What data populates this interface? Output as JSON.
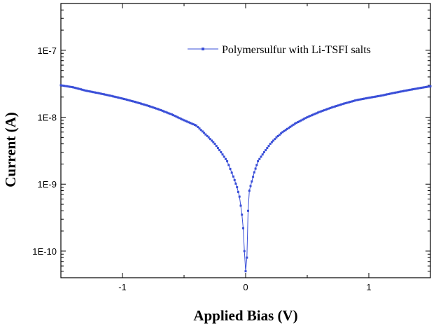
{
  "chart_data": {
    "type": "scatter",
    "title": "",
    "xlabel": "Applied Bias (V)",
    "ylabel": "Current (A)",
    "xlim": [
      -1.5,
      1.5
    ],
    "ylim": [
      4e-11,
      5e-07
    ],
    "yscale": "log",
    "grid": false,
    "legend_position": "top-right",
    "x_ticks": [
      {
        "value": -1,
        "label": "-1"
      },
      {
        "value": 0,
        "label": "0"
      },
      {
        "value": 1,
        "label": "1"
      }
    ],
    "y_ticks": [
      {
        "value": 1e-10,
        "label": "1E-10"
      },
      {
        "value": 1e-09,
        "label": "1E-9"
      },
      {
        "value": 1e-08,
        "label": "1E-8"
      },
      {
        "value": 1e-07,
        "label": "1E-7"
      }
    ],
    "series": [
      {
        "name": "Polymersulfur with Li-TSFI salts",
        "color": "#3a4fd8",
        "marker": "square",
        "x": [
          -1.5,
          -1.4,
          -1.3,
          -1.2,
          -1.1,
          -1.0,
          -0.9,
          -0.8,
          -0.7,
          -0.6,
          -0.5,
          -0.4,
          -0.3,
          -0.25,
          -0.2,
          -0.15,
          -0.1,
          -0.07,
          -0.05,
          -0.03,
          -0.02,
          -0.01,
          0.0,
          0.01,
          0.02,
          0.03,
          0.05,
          0.07,
          0.1,
          0.15,
          0.2,
          0.25,
          0.3,
          0.4,
          0.5,
          0.6,
          0.7,
          0.8,
          0.9,
          1.0,
          1.1,
          1.2,
          1.3,
          1.4,
          1.5
        ],
        "y": [
          3e-08,
          2.8e-08,
          2.5e-08,
          2.3e-08,
          2.1e-08,
          1.9e-08,
          1.7e-08,
          1.5e-08,
          1.3e-08,
          1.1e-08,
          9e-09,
          7.5e-09,
          5e-09,
          4e-09,
          3e-09,
          2.2e-09,
          1.3e-09,
          9e-10,
          6.5e-10,
          3.5e-10,
          2.2e-10,
          1e-10,
          5e-11,
          8e-11,
          4e-10,
          8e-10,
          1.1e-09,
          1.5e-09,
          2.2e-09,
          3e-09,
          4e-09,
          5e-09,
          6e-09,
          8e-09,
          1e-08,
          1.2e-08,
          1.4e-08,
          1.6e-08,
          1.8e-08,
          1.95e-08,
          2.1e-08,
          2.3e-08,
          2.5e-08,
          2.7e-08,
          2.9e-08
        ]
      }
    ]
  }
}
